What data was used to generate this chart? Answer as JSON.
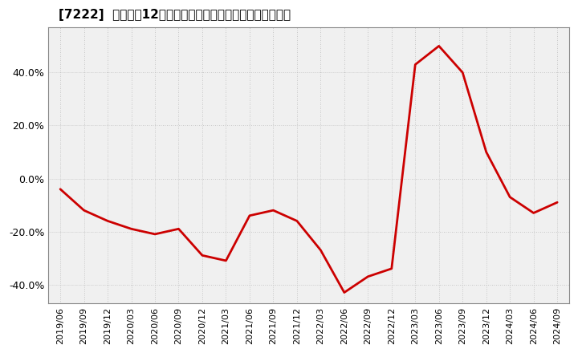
{
  "title": "[7222]  売上高の12か月移動合計の対前年同期増減率の推移",
  "line_color": "#cc0000",
  "background_color": "#ffffff",
  "plot_bg_color": "#f0f0f0",
  "grid_color": "#bbbbbb",
  "dates": [
    "2019/06",
    "2019/09",
    "2019/12",
    "2020/03",
    "2020/06",
    "2020/09",
    "2020/12",
    "2021/03",
    "2021/06",
    "2021/09",
    "2021/12",
    "2022/03",
    "2022/06",
    "2022/09",
    "2022/12",
    "2023/03",
    "2023/06",
    "2023/09",
    "2023/12",
    "2024/03",
    "2024/06",
    "2024/09"
  ],
  "values": [
    -0.04,
    -0.12,
    -0.16,
    -0.19,
    -0.21,
    -0.19,
    -0.29,
    -0.31,
    -0.14,
    -0.12,
    -0.16,
    -0.27,
    -0.43,
    -0.37,
    -0.34,
    0.43,
    0.5,
    0.4,
    0.1,
    -0.07,
    -0.13,
    -0.09
  ],
  "yticks": [
    -0.4,
    -0.2,
    0.0,
    0.2,
    0.4
  ],
  "ylim": [
    -0.47,
    0.57
  ],
  "xtick_labels": [
    "2019/06",
    "2019/09",
    "2019/12",
    "2020/03",
    "2020/06",
    "2020/09",
    "2020/12",
    "2021/03",
    "2021/06",
    "2021/09",
    "2021/12",
    "2022/03",
    "2022/06",
    "2022/09",
    "2022/12",
    "2023/03",
    "2023/06",
    "2023/09",
    "2023/12",
    "2024/03",
    "2024/06",
    "2024/09"
  ],
  "title_fontsize": 11,
  "tick_fontsize": 8,
  "ytick_fontsize": 9
}
